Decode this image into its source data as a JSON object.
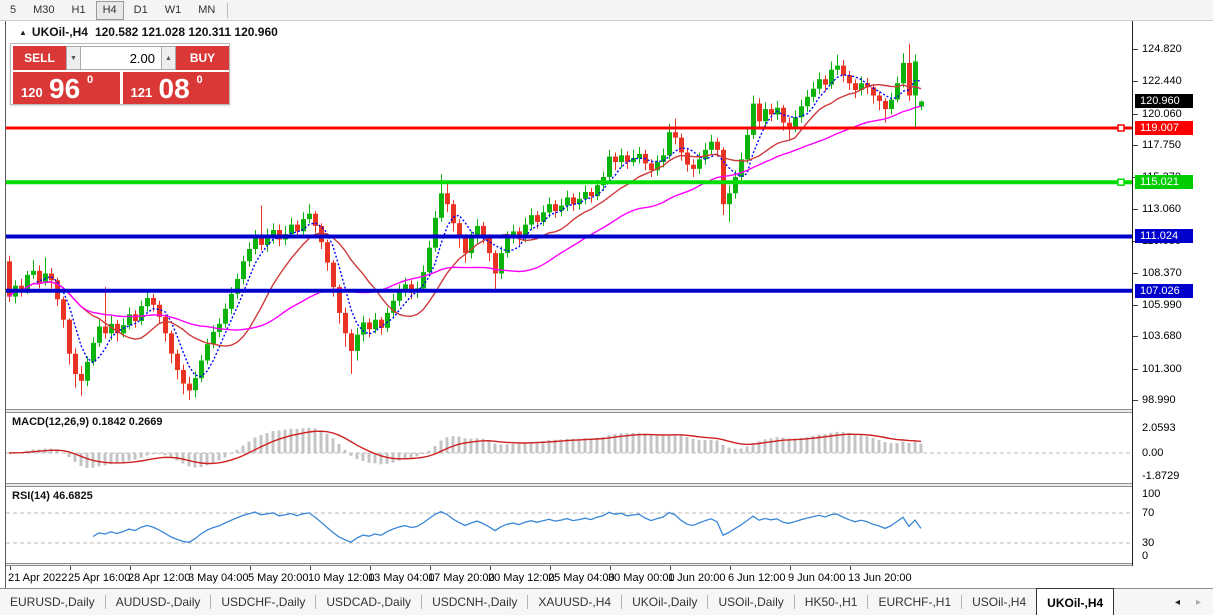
{
  "toolbar": {
    "timeframes": [
      {
        "label": "5",
        "active": false
      },
      {
        "label": "M30",
        "active": false
      },
      {
        "label": "H1",
        "active": false
      },
      {
        "label": "H4",
        "active": true
      },
      {
        "label": "D1",
        "active": false
      },
      {
        "label": "W1",
        "active": false
      },
      {
        "label": "MN",
        "active": false
      }
    ]
  },
  "chart": {
    "title": {
      "symbol": "UKOil-,H4",
      "ohlc": "120.582 121.028 120.311 120.960"
    },
    "trade_panel": {
      "sell_label": "SELL",
      "buy_label": "BUY",
      "volume": "2.00",
      "sell_price_small": "120",
      "sell_price_big": "96",
      "sell_price_sup": "0",
      "buy_price_small": "121",
      "buy_price_big": "08",
      "buy_price_sup": "0"
    },
    "price_axis": {
      "ticks": [
        "124.820",
        "122.440",
        "120.060",
        "117.750",
        "115.370",
        "113.060",
        "110.680",
        "108.370",
        "105.990",
        "103.680",
        "101.300",
        "98.990"
      ],
      "badges": [
        {
          "text": "120.960",
          "color": "#000000"
        },
        {
          "text": "119.007",
          "color": "#ff0000"
        },
        {
          "text": "115.021",
          "color": "#00cc00"
        },
        {
          "text": "111.024",
          "color": "#0000cd"
        },
        {
          "text": "107.026",
          "color": "#0000cd"
        }
      ]
    },
    "time_axis": {
      "labels": [
        "21 Apr 2022",
        "25 Apr 16:00",
        "28 Apr 12:00",
        "3 May 04:00",
        "5 May 20:00",
        "10 May 12:00",
        "13 May 04:00",
        "17 May 20:00",
        "20 May 12:00",
        "25 May 04:00",
        "30 May 00:00",
        "1 Jun 20:00",
        "6 Jun 12:00",
        "9 Jun 04:00",
        "13 Jun 20:00"
      ]
    }
  },
  "indicators": {
    "macd": {
      "label": "MACD(12,26,9)",
      "values": "0.1842 0.2669",
      "axis": [
        "2.0593",
        "0.00",
        "-1.8729"
      ]
    },
    "rsi": {
      "label": "RSI(14)",
      "value": "46.6825",
      "axis": [
        "100",
        "70",
        "30",
        "0"
      ]
    }
  },
  "tabs": {
    "items": [
      "EURUSD-,Daily",
      "AUDUSD-,Daily",
      "USDCHF-,Daily",
      "USDCAD-,Daily",
      "USDCNH-,Daily",
      "XAUUSD-,H4",
      "UKOil-,Daily",
      "USOil-,Daily",
      "HK50-,H1",
      "EURCHF-,H1",
      "USOil-,H4",
      "UKOil-,H4"
    ],
    "active": "UKOil-,H4",
    "arrow_left": "◂",
    "arrow_right": "▸"
  },
  "chart_data": {
    "type": "candlestick",
    "symbol": "UKOil-",
    "timeframe": "H4",
    "ylim": [
      98.99,
      125.65
    ],
    "up_color": "#0cb30c",
    "down_color": "#ea3323",
    "macd_hist_color": "#c4c4c4",
    "macd_signal_color": "#cf2020",
    "rsi_color": "#3a87d8",
    "overlays": [
      {
        "name": "ma-fast-line",
        "period": 5,
        "color": "#0000ff",
        "dash": "2 2"
      },
      {
        "name": "ma-mid-line",
        "period": 13,
        "color": "#cf3a3a",
        "dash": ""
      },
      {
        "name": "ma-slow-line",
        "period": 34,
        "color": "#ff00ff",
        "dash": ""
      }
    ],
    "hlines": [
      {
        "price": 119.007,
        "color": "#ff0000",
        "width": 3,
        "handle": true
      },
      {
        "price": 115.021,
        "color": "#00dd00",
        "width": 4,
        "handle": true
      },
      {
        "price": 111.024,
        "color": "#0000cd",
        "width": 4,
        "handle": false
      },
      {
        "price": 107.026,
        "color": "#0000cd",
        "width": 4,
        "handle": false
      }
    ],
    "candles": [
      [
        109.2,
        109.6,
        106.2,
        106.6
      ],
      [
        106.6,
        107.8,
        106.1,
        107.4
      ],
      [
        107.4,
        107.9,
        106.6,
        107.0
      ],
      [
        107.0,
        108.5,
        106.8,
        108.2
      ],
      [
        108.2,
        109.3,
        107.9,
        108.5
      ],
      [
        108.5,
        108.9,
        107.2,
        107.6
      ],
      [
        107.6,
        109.5,
        107.4,
        108.3
      ],
      [
        108.3,
        108.7,
        107.2,
        107.8
      ],
      [
        107.8,
        108.0,
        105.9,
        106.4
      ],
      [
        106.4,
        106.6,
        104.3,
        104.9
      ],
      [
        104.9,
        105.0,
        101.6,
        102.4
      ],
      [
        102.4,
        102.8,
        99.9,
        100.9
      ],
      [
        100.9,
        101.5,
        99.3,
        100.4
      ],
      [
        100.4,
        102.2,
        100.0,
        101.8
      ],
      [
        101.8,
        103.6,
        101.5,
        103.2
      ],
      [
        103.2,
        104.9,
        102.9,
        104.4
      ],
      [
        104.4,
        107.3,
        103.5,
        103.9
      ],
      [
        103.9,
        105.2,
        103.4,
        104.6
      ],
      [
        104.6,
        104.9,
        103.3,
        103.9
      ],
      [
        103.9,
        105.0,
        103.6,
        104.5
      ],
      [
        104.5,
        105.8,
        104.2,
        105.3
      ],
      [
        105.3,
        105.6,
        104.3,
        104.8
      ],
      [
        104.8,
        106.3,
        104.5,
        105.9
      ],
      [
        105.9,
        107.0,
        105.5,
        106.5
      ],
      [
        106.5,
        106.8,
        105.5,
        106.0
      ],
      [
        106.0,
        106.3,
        104.6,
        105.1
      ],
      [
        105.1,
        105.3,
        103.3,
        103.9
      ],
      [
        103.9,
        104.1,
        101.7,
        102.4
      ],
      [
        102.4,
        102.7,
        100.5,
        101.2
      ],
      [
        101.2,
        101.6,
        99.4,
        100.2
      ],
      [
        100.2,
        100.7,
        99.0,
        99.7
      ],
      [
        99.7,
        101.1,
        99.2,
        100.6
      ],
      [
        100.6,
        102.3,
        100.3,
        101.9
      ],
      [
        101.9,
        103.5,
        101.6,
        103.1
      ],
      [
        103.1,
        104.5,
        102.8,
        104.0
      ],
      [
        104.0,
        105.0,
        103.6,
        104.6
      ],
      [
        104.6,
        106.1,
        104.3,
        105.7
      ],
      [
        105.7,
        107.3,
        105.3,
        106.8
      ],
      [
        106.8,
        108.3,
        106.4,
        107.9
      ],
      [
        107.9,
        109.6,
        107.5,
        109.2
      ],
      [
        109.2,
        110.6,
        108.8,
        110.1
      ],
      [
        110.1,
        111.5,
        109.7,
        111.1
      ],
      [
        111.1,
        113.3,
        110.0,
        110.4
      ],
      [
        110.4,
        111.6,
        109.9,
        110.9
      ],
      [
        110.9,
        112.0,
        110.5,
        111.5
      ],
      [
        111.5,
        111.9,
        110.3,
        110.8
      ],
      [
        110.8,
        111.8,
        110.4,
        111.2
      ],
      [
        111.2,
        112.4,
        110.9,
        111.9
      ],
      [
        111.9,
        112.2,
        110.9,
        111.4
      ],
      [
        111.4,
        112.8,
        111.1,
        112.3
      ],
      [
        112.3,
        113.4,
        112.0,
        112.7
      ],
      [
        112.7,
        112.9,
        111.3,
        111.8
      ],
      [
        111.8,
        112.0,
        110.1,
        110.6
      ],
      [
        110.6,
        110.8,
        108.5,
        109.1
      ],
      [
        109.1,
        109.3,
        106.6,
        107.3
      ],
      [
        107.3,
        107.5,
        104.6,
        105.4
      ],
      [
        105.4,
        105.8,
        102.9,
        103.9
      ],
      [
        103.9,
        104.2,
        100.9,
        102.6
      ],
      [
        102.6,
        104.3,
        101.9,
        103.8
      ],
      [
        103.8,
        105.2,
        103.3,
        104.7
      ],
      [
        104.7,
        105.0,
        103.6,
        104.2
      ],
      [
        104.2,
        105.4,
        103.9,
        104.9
      ],
      [
        104.9,
        105.1,
        103.8,
        104.3
      ],
      [
        104.3,
        105.8,
        104.0,
        105.4
      ],
      [
        105.4,
        106.8,
        105.0,
        106.3
      ],
      [
        106.3,
        107.5,
        105.9,
        107.0
      ],
      [
        107.0,
        108.0,
        106.6,
        107.5
      ],
      [
        107.5,
        107.8,
        106.4,
        106.9
      ],
      [
        106.9,
        107.7,
        106.5,
        107.2
      ],
      [
        107.2,
        108.9,
        106.9,
        108.4
      ],
      [
        108.4,
        110.7,
        108.1,
        110.2
      ],
      [
        110.2,
        112.9,
        109.9,
        112.4
      ],
      [
        112.4,
        115.6,
        112.1,
        114.2
      ],
      [
        114.2,
        114.9,
        112.8,
        113.4
      ],
      [
        113.4,
        113.7,
        111.4,
        112.0
      ],
      [
        112.0,
        112.3,
        110.2,
        110.9
      ],
      [
        110.9,
        111.2,
        109.1,
        109.8
      ],
      [
        109.8,
        111.4,
        109.4,
        110.9
      ],
      [
        110.9,
        112.3,
        110.5,
        111.8
      ],
      [
        111.8,
        112.1,
        110.5,
        111.0
      ],
      [
        111.0,
        111.2,
        109.2,
        109.8
      ],
      [
        109.8,
        110.0,
        107.0,
        108.3
      ],
      [
        108.3,
        110.3,
        107.9,
        109.8
      ],
      [
        109.8,
        111.4,
        109.5,
        110.9
      ],
      [
        110.9,
        111.9,
        110.5,
        111.4
      ],
      [
        111.4,
        111.7,
        110.4,
        110.9
      ],
      [
        110.9,
        112.4,
        110.6,
        111.9
      ],
      [
        111.9,
        113.1,
        111.5,
        112.6
      ],
      [
        112.6,
        112.9,
        111.6,
        112.1
      ],
      [
        112.1,
        113.3,
        111.8,
        112.8
      ],
      [
        112.8,
        113.9,
        112.4,
        113.4
      ],
      [
        113.4,
        113.7,
        112.4,
        112.9
      ],
      [
        112.9,
        113.8,
        112.5,
        113.3
      ],
      [
        113.3,
        114.4,
        112.9,
        113.9
      ],
      [
        113.9,
        114.2,
        112.9,
        113.4
      ],
      [
        113.4,
        114.3,
        113.0,
        113.8
      ],
      [
        113.8,
        114.8,
        113.4,
        114.3
      ],
      [
        114.3,
        114.6,
        113.5,
        114.0
      ],
      [
        114.0,
        115.2,
        113.7,
        114.8
      ],
      [
        114.8,
        115.8,
        114.4,
        115.4
      ],
      [
        115.4,
        117.4,
        115.1,
        116.9
      ],
      [
        116.9,
        117.2,
        115.9,
        116.5
      ],
      [
        116.5,
        117.5,
        116.1,
        117.0
      ],
      [
        117.0,
        117.3,
        116.0,
        116.5
      ],
      [
        116.5,
        117.4,
        116.2,
        116.8
      ],
      [
        116.8,
        117.6,
        116.4,
        117.1
      ],
      [
        117.1,
        117.4,
        115.9,
        116.4
      ],
      [
        116.4,
        116.7,
        115.4,
        115.9
      ],
      [
        115.9,
        117.0,
        115.5,
        116.5
      ],
      [
        116.5,
        117.5,
        116.1,
        117.0
      ],
      [
        117.0,
        119.3,
        116.7,
        118.7
      ],
      [
        118.7,
        119.7,
        117.8,
        118.3
      ],
      [
        118.3,
        118.6,
        116.6,
        117.2
      ],
      [
        117.2,
        117.5,
        115.8,
        116.3
      ],
      [
        116.3,
        116.7,
        115.4,
        116.0
      ],
      [
        116.0,
        117.2,
        115.6,
        116.7
      ],
      [
        116.7,
        117.9,
        116.3,
        117.4
      ],
      [
        117.4,
        118.5,
        117.0,
        118.0
      ],
      [
        118.0,
        118.3,
        116.9,
        117.4
      ],
      [
        117.4,
        117.6,
        112.6,
        113.4
      ],
      [
        113.4,
        114.8,
        112.1,
        114.2
      ],
      [
        114.2,
        115.9,
        113.8,
        115.4
      ],
      [
        115.4,
        117.2,
        115.0,
        116.7
      ],
      [
        116.7,
        119.0,
        116.4,
        118.5
      ],
      [
        118.5,
        121.4,
        118.2,
        120.8
      ],
      [
        120.8,
        121.2,
        119.0,
        119.5
      ],
      [
        119.5,
        120.9,
        119.1,
        120.4
      ],
      [
        120.4,
        120.8,
        119.5,
        120.0
      ],
      [
        120.0,
        121.0,
        119.6,
        120.5
      ],
      [
        120.5,
        120.7,
        118.8,
        119.4
      ],
      [
        119.4,
        119.8,
        118.2,
        119.1
      ],
      [
        119.1,
        120.3,
        118.7,
        119.8
      ],
      [
        119.8,
        121.1,
        119.4,
        120.6
      ],
      [
        120.6,
        121.8,
        120.2,
        121.3
      ],
      [
        121.3,
        122.4,
        120.9,
        121.9
      ],
      [
        121.9,
        123.1,
        121.5,
        122.6
      ],
      [
        122.6,
        122.9,
        121.7,
        122.2
      ],
      [
        122.2,
        123.9,
        121.9,
        123.3
      ],
      [
        123.3,
        124.4,
        122.9,
        123.6
      ],
      [
        123.6,
        124.0,
        122.4,
        122.9
      ],
      [
        122.9,
        123.2,
        121.8,
        122.3
      ],
      [
        122.3,
        122.6,
        121.2,
        121.8
      ],
      [
        121.8,
        122.8,
        121.4,
        122.3
      ],
      [
        122.3,
        122.7,
        121.5,
        122.0
      ],
      [
        122.0,
        122.2,
        120.8,
        121.4
      ],
      [
        121.4,
        121.7,
        120.3,
        121.0
      ],
      [
        121.0,
        121.2,
        119.4,
        120.4
      ],
      [
        120.4,
        121.6,
        120.0,
        121.1
      ],
      [
        121.1,
        122.8,
        120.9,
        122.3
      ],
      [
        122.3,
        124.5,
        122.0,
        123.8
      ],
      [
        123.8,
        125.2,
        121.0,
        121.4
      ],
      [
        121.4,
        124.4,
        119.0,
        123.9
      ],
      [
        120.582,
        121.028,
        120.311,
        120.96
      ]
    ]
  }
}
